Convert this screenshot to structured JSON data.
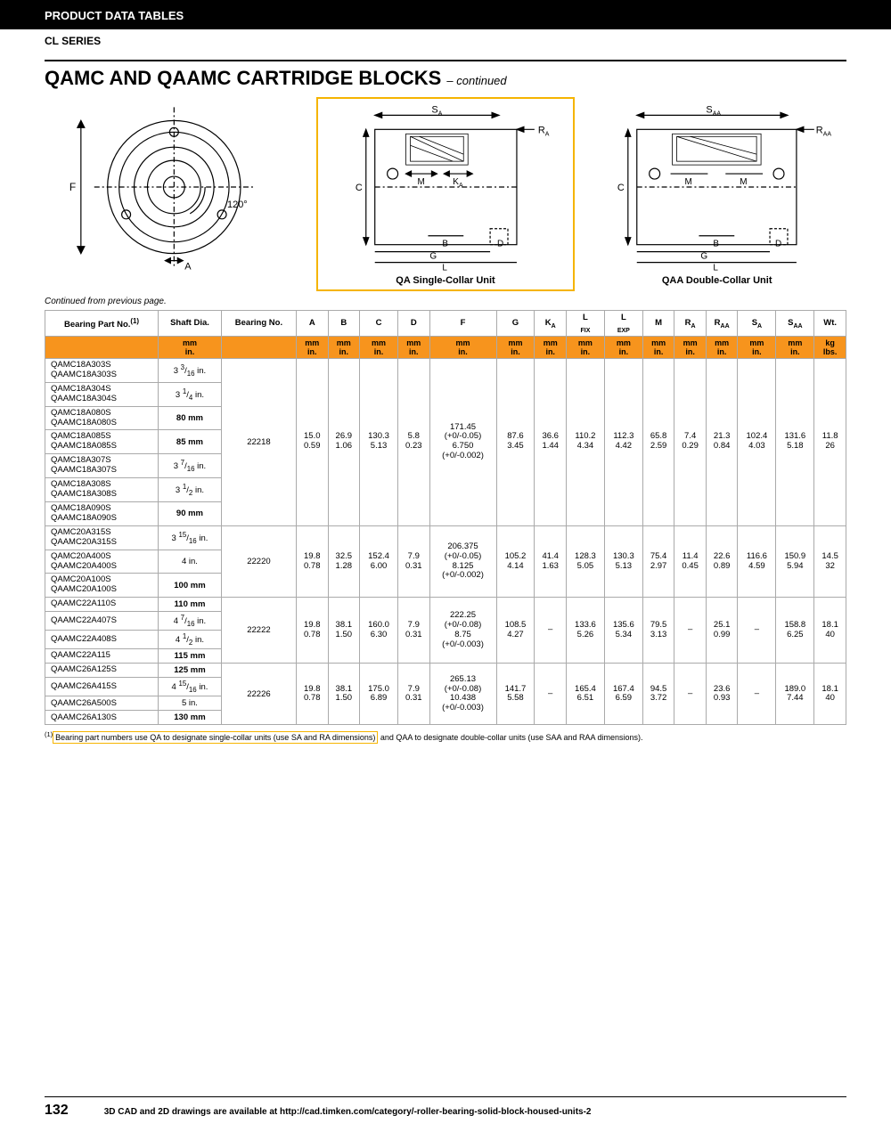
{
  "header": "PRODUCT DATA TABLES",
  "subheader": "CL SERIES",
  "title_main": "QAMC AND QAAMC CARTRIDGE BLOCKS",
  "title_cont": "– continued",
  "diagram_labels": {
    "front": {
      "F": "F",
      "A": "A",
      "angle": "120°"
    },
    "sideA": {
      "S": "S",
      "R": "R",
      "M": "M",
      "K": "K",
      "C": "C",
      "B": "B",
      "D": "D",
      "G": "G",
      "L": "L",
      "sub": "A"
    },
    "sideAA": {
      "S": "S",
      "R": "R",
      "M": "M",
      "C": "C",
      "B": "B",
      "D": "D",
      "G": "G",
      "L": "L",
      "sub": "AA"
    }
  },
  "cap_single": "QA Single-Collar Unit",
  "cap_double": "QAA Double-Collar Unit",
  "cont_note": "Continued from previous page.",
  "columns": {
    "part": "Bearing Part No.",
    "part_sup": "(1)",
    "shaft": "Shaft Dia.",
    "bno": "Bearing No.",
    "A": "A",
    "B": "B",
    "C": "C",
    "D": "D",
    "F": "F",
    "G": "G",
    "KA": "K",
    "Lfix": "L",
    "Lexp": "L",
    "M": "M",
    "RA": "R",
    "RAA": "R",
    "SA": "S",
    "SAA": "S",
    "Wt": "Wt.",
    "Lfix_sub": "FIX",
    "Lexp_sub": "EXP"
  },
  "unit_mm": "mm",
  "unit_in": "in.",
  "unit_kg": "kg",
  "unit_lbs": "lbs.",
  "groups": [
    {
      "bearing_no": "22218",
      "A": [
        "15.0",
        "0.59"
      ],
      "B": [
        "26.9",
        "1.06"
      ],
      "C": [
        "130.3",
        "5.13"
      ],
      "D": [
        "5.8",
        "0.23"
      ],
      "F": [
        "171.45",
        "(+0/-0.05)",
        "6.750",
        "(+0/-0.002)"
      ],
      "G": [
        "87.6",
        "3.45"
      ],
      "KA": [
        "36.6",
        "1.44"
      ],
      "Lfix": [
        "110.2",
        "4.34"
      ],
      "Lexp": [
        "112.3",
        "4.42"
      ],
      "M": [
        "65.8",
        "2.59"
      ],
      "RA": [
        "7.4",
        "0.29"
      ],
      "RAA": [
        "21.3",
        "0.84"
      ],
      "SA": [
        "102.4",
        "4.03"
      ],
      "SAA": [
        "131.6",
        "5.18"
      ],
      "Wt": [
        "11.8",
        "26"
      ],
      "rows": [
        {
          "pn": [
            "QAMC18A303S",
            "QAAMC18A303S"
          ],
          "shaft_html": "3 <sup>3</sup>/<sub>16</sub> in."
        },
        {
          "pn": [
            "QAMC18A304S",
            "QAAMC18A304S"
          ],
          "shaft_html": "3 <sup>1</sup>/<sub>4</sub> in."
        },
        {
          "pn": [
            "QAMC18A080S",
            "QAAMC18A080S"
          ],
          "shaft_html": "<b>80 mm</b>"
        },
        {
          "pn": [
            "QAMC18A085S",
            "QAAMC18A085S"
          ],
          "shaft_html": "<b>85 mm</b>"
        },
        {
          "pn": [
            "QAMC18A307S",
            "QAAMC18A307S"
          ],
          "shaft_html": "3 <sup>7</sup>/<sub>16</sub> in."
        },
        {
          "pn": [
            "QAMC18A308S",
            "QAAMC18A308S"
          ],
          "shaft_html": "3 <sup>1</sup>/<sub>2</sub> in."
        },
        {
          "pn": [
            "QAMC18A090S",
            "QAAMC18A090S"
          ],
          "shaft_html": "<b>90 mm</b>"
        }
      ]
    },
    {
      "bearing_no": "22220",
      "A": [
        "19.8",
        "0.78"
      ],
      "B": [
        "32.5",
        "1.28"
      ],
      "C": [
        "152.4",
        "6.00"
      ],
      "D": [
        "7.9",
        "0.31"
      ],
      "F": [
        "206.375",
        "(+0/-0.05)",
        "8.125",
        "(+0/-0.002)"
      ],
      "G": [
        "105.2",
        "4.14"
      ],
      "KA": [
        "41.4",
        "1.63"
      ],
      "Lfix": [
        "128.3",
        "5.05"
      ],
      "Lexp": [
        "130.3",
        "5.13"
      ],
      "M": [
        "75.4",
        "2.97"
      ],
      "RA": [
        "11.4",
        "0.45"
      ],
      "RAA": [
        "22.6",
        "0.89"
      ],
      "SA": [
        "116.6",
        "4.59"
      ],
      "SAA": [
        "150.9",
        "5.94"
      ],
      "Wt": [
        "14.5",
        "32"
      ],
      "rows": [
        {
          "pn": [
            "QAMC20A315S",
            "QAAMC20A315S"
          ],
          "shaft_html": "3 <sup>15</sup>/<sub>16</sub> in."
        },
        {
          "pn": [
            "QAMC20A400S",
            "QAAMC20A400S"
          ],
          "shaft_html": "4 in."
        },
        {
          "pn": [
            "QAMC20A100S",
            "QAAMC20A100S"
          ],
          "shaft_html": "<b>100 mm</b>"
        }
      ]
    },
    {
      "bearing_no": "22222",
      "A": [
        "19.8",
        "0.78"
      ],
      "B": [
        "38.1",
        "1.50"
      ],
      "C": [
        "160.0",
        "6.30"
      ],
      "D": [
        "7.9",
        "0.31"
      ],
      "F": [
        "222.25",
        "(+0/-0.08)",
        "8.75",
        "(+0/-0.003)"
      ],
      "G": [
        "108.5",
        "4.27"
      ],
      "KA": [
        "–",
        ""
      ],
      "Lfix": [
        "133.6",
        "5.26"
      ],
      "Lexp": [
        "135.6",
        "5.34"
      ],
      "M": [
        "79.5",
        "3.13"
      ],
      "RA": [
        "–",
        ""
      ],
      "RAA": [
        "25.1",
        "0.99"
      ],
      "SA": [
        "–",
        ""
      ],
      "SAA": [
        "158.8",
        "6.25"
      ],
      "Wt": [
        "18.1",
        "40"
      ],
      "rows": [
        {
          "pn": [
            "QAAMC22A110S"
          ],
          "shaft_html": "<b>110 mm</b>"
        },
        {
          "pn": [
            "QAAMC22A407S"
          ],
          "shaft_html": "4 <sup>7</sup>/<sub>16</sub> in."
        },
        {
          "pn": [
            "QAAMC22A408S"
          ],
          "shaft_html": "4 <sup>1</sup>/<sub>2</sub> in."
        },
        {
          "pn": [
            "QAAMC22A115"
          ],
          "shaft_html": "<b>115 mm</b>"
        }
      ]
    },
    {
      "bearing_no": "22226",
      "A": [
        "19.8",
        "0.78"
      ],
      "B": [
        "38.1",
        "1.50"
      ],
      "C": [
        "175.0",
        "6.89"
      ],
      "D": [
        "7.9",
        "0.31"
      ],
      "F": [
        "265.13",
        "(+0/-0.08)",
        "10.438",
        "(+0/-0.003)"
      ],
      "G": [
        "141.7",
        "5.58"
      ],
      "KA": [
        "–",
        ""
      ],
      "Lfix": [
        "165.4",
        "6.51"
      ],
      "Lexp": [
        "167.4",
        "6.59"
      ],
      "M": [
        "94.5",
        "3.72"
      ],
      "RA": [
        "–",
        ""
      ],
      "RAA": [
        "23.6",
        "0.93"
      ],
      "SA": [
        "–",
        ""
      ],
      "SAA": [
        "189.0",
        "7.44"
      ],
      "Wt": [
        "18.1",
        "40"
      ],
      "rows": [
        {
          "pn": [
            "QAAMC26A125S"
          ],
          "shaft_html": "<b>125 mm</b>"
        },
        {
          "pn": [
            "QAAMC26A415S"
          ],
          "shaft_html": "4 <sup>15</sup>/<sub>16</sub> in."
        },
        {
          "pn": [
            "QAAMC26A500S"
          ],
          "shaft_html": "5 in."
        },
        {
          "pn": [
            "QAAMC26A130S"
          ],
          "shaft_html": "<b>130 mm</b>"
        }
      ]
    }
  ],
  "footnote_pre": "(1)",
  "footnote_hl": "Bearing part numbers use QA to designate single-collar units (use SA and RA dimensions)",
  "footnote_post": " and QAA to designate double-collar units (use SAA and RAA dimensions).",
  "page_no": "132",
  "footer_text": "3D CAD and 2D drawings are available at http://cad.timken.com/category/-roller-bearing-solid-block-housed-units-2"
}
